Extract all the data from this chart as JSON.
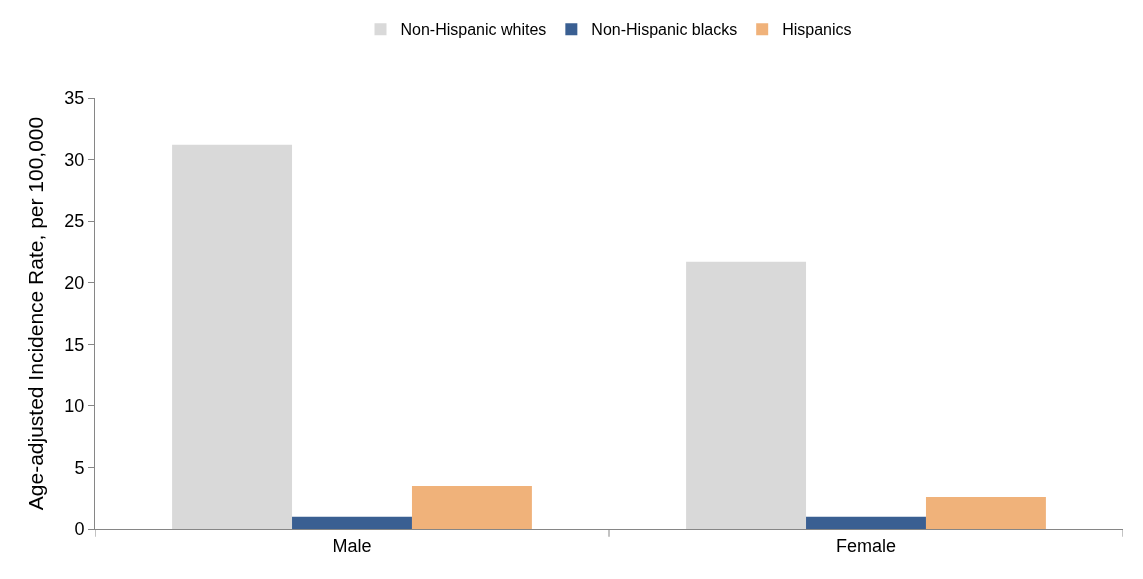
{
  "chart_data": {
    "type": "bar",
    "ylabel": "Age-adjusted Incidence Rate, per 100,000",
    "categories": [
      "Male",
      "Female"
    ],
    "series": [
      {
        "name": "Non-Hispanic whites",
        "color": "#d9d9d9",
        "values": [
          31.2,
          21.7
        ]
      },
      {
        "name": "Non-Hispanic blacks",
        "color": "#3a5f92",
        "values": [
          1.0,
          1.0
        ]
      },
      {
        "name": "Hispanics",
        "color": "#f0b27a",
        "values": [
          3.5,
          2.6
        ]
      }
    ],
    "ylim": [
      0,
      35
    ],
    "yticks": [
      0,
      5,
      10,
      15,
      20,
      25,
      30,
      35
    ],
    "grid": false,
    "legend": "top"
  }
}
